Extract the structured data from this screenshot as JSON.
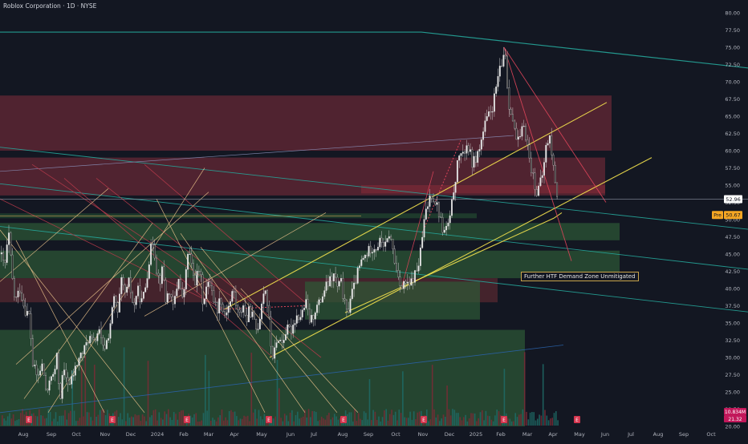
{
  "title": "Roblox Corporation · 1D · NYSE",
  "chart_data": {
    "type": "candlestick",
    "ylim": [
      20,
      80
    ],
    "y_ticks": [
      80,
      77.5,
      75,
      72.5,
      70,
      67.5,
      65,
      62.5,
      60,
      57.5,
      55,
      52.5,
      50,
      47.5,
      45,
      42.5,
      40,
      37.5,
      35,
      32.5,
      30,
      27.5,
      25,
      22.5,
      20
    ],
    "y_tick_labels": [
      "80.00",
      "77.50",
      "75.00",
      "72.50",
      "70.00",
      "67.50",
      "65.00",
      "62.50",
      "60.00",
      "57.50",
      "55.00",
      "52.50",
      "50.00",
      "47.50",
      "45.00",
      "42.50",
      "40.00",
      "37.50",
      "35.00",
      "32.50",
      "30.00",
      "27.50",
      "25.00",
      "22.50",
      "20.00"
    ],
    "x_labels": [
      "Aug",
      "Sep",
      "Oct",
      "Nov",
      "Dec",
      "2024",
      "Feb",
      "Mar",
      "Apr",
      "May",
      "Jun",
      "Jul",
      "Aug",
      "Sep",
      "Oct",
      "Nov",
      "Dec",
      "2025",
      "Feb",
      "Mar",
      "Apr",
      "May",
      "Jun",
      "Jul",
      "Aug",
      "Sep",
      "Oct"
    ],
    "last_price": "52.96",
    "pre_market_tag": "Pre",
    "pre_market_price": "50.67",
    "volume_value": "10.834M",
    "volume_value_2": "21.32",
    "annotation": "Further HTF Demand Zone Unmitigated",
    "price_path": [
      [
        0,
        45
      ],
      [
        5,
        43
      ],
      [
        10,
        48
      ],
      [
        14,
        42
      ],
      [
        18,
        38
      ],
      [
        24,
        40
      ],
      [
        30,
        37
      ],
      [
        36,
        36
      ],
      [
        40,
        29
      ],
      [
        46,
        27
      ],
      [
        52,
        29
      ],
      [
        58,
        24
      ],
      [
        62,
        28
      ],
      [
        66,
        27
      ],
      [
        70,
        30
      ],
      [
        74,
        24
      ],
      [
        78,
        28
      ],
      [
        82,
        27
      ],
      [
        86,
        26
      ],
      [
        92,
        28
      ],
      [
        98,
        30
      ],
      [
        104,
        31
      ],
      [
        110,
        33
      ],
      [
        116,
        32
      ],
      [
        122,
        34
      ],
      [
        128,
        31
      ],
      [
        134,
        33
      ],
      [
        138,
        36
      ],
      [
        142,
        39
      ],
      [
        146,
        36
      ],
      [
        150,
        41
      ],
      [
        156,
        39
      ],
      [
        160,
        41
      ],
      [
        166,
        37
      ],
      [
        170,
        40
      ],
      [
        176,
        38
      ],
      [
        180,
        40
      ],
      [
        186,
        45
      ],
      [
        190,
        47
      ],
      [
        194,
        43
      ],
      [
        198,
        41
      ],
      [
        202,
        43
      ],
      [
        206,
        38
      ],
      [
        210,
        40
      ],
      [
        214,
        37
      ],
      [
        218,
        39
      ],
      [
        222,
        42
      ],
      [
        226,
        38
      ],
      [
        230,
        41
      ],
      [
        234,
        46
      ],
      [
        238,
        43
      ],
      [
        242,
        41
      ],
      [
        248,
        43
      ],
      [
        252,
        38
      ],
      [
        256,
        40
      ],
      [
        262,
        41
      ],
      [
        266,
        38
      ],
      [
        270,
        37
      ],
      [
        274,
        39
      ],
      [
        278,
        36
      ],
      [
        282,
        37
      ],
      [
        286,
        38
      ],
      [
        290,
        40
      ],
      [
        294,
        37
      ],
      [
        298,
        36
      ],
      [
        302,
        38
      ],
      [
        306,
        35
      ],
      [
        310,
        37
      ],
      [
        314,
        36
      ],
      [
        318,
        34
      ],
      [
        322,
        35
      ],
      [
        326,
        39
      ],
      [
        330,
        40
      ],
      [
        334,
        36
      ],
      [
        338,
        30
      ],
      [
        342,
        31
      ],
      [
        346,
        33
      ],
      [
        350,
        32
      ],
      [
        356,
        34
      ],
      [
        362,
        34
      ],
      [
        368,
        36
      ],
      [
        374,
        36
      ],
      [
        380,
        38
      ],
      [
        386,
        35
      ],
      [
        392,
        37
      ],
      [
        398,
        38
      ],
      [
        404,
        40
      ],
      [
        410,
        41
      ],
      [
        416,
        42
      ],
      [
        420,
        40
      ],
      [
        424,
        41
      ],
      [
        428,
        38
      ],
      [
        432,
        36
      ],
      [
        436,
        39
      ],
      [
        440,
        40
      ],
      [
        444,
        42
      ],
      [
        450,
        44
      ],
      [
        456,
        45
      ],
      [
        462,
        46
      ],
      [
        468,
        46
      ],
      [
        474,
        47
      ],
      [
        480,
        46
      ],
      [
        484,
        48
      ],
      [
        488,
        46
      ],
      [
        492,
        43
      ],
      [
        496,
        42
      ],
      [
        500,
        40
      ],
      [
        504,
        41
      ],
      [
        508,
        40
      ],
      [
        512,
        41
      ],
      [
        516,
        42
      ],
      [
        520,
        43
      ],
      [
        524,
        46
      ],
      [
        528,
        50
      ],
      [
        532,
        52
      ],
      [
        536,
        54
      ],
      [
        540,
        53
      ],
      [
        544,
        52
      ],
      [
        548,
        50
      ],
      [
        552,
        48
      ],
      [
        556,
        49
      ],
      [
        560,
        50
      ],
      [
        564,
        54
      ],
      [
        568,
        57
      ],
      [
        572,
        60
      ],
      [
        576,
        59
      ],
      [
        580,
        61
      ],
      [
        584,
        60
      ],
      [
        588,
        58
      ],
      [
        592,
        59
      ],
      [
        596,
        60
      ],
      [
        600,
        62
      ],
      [
        604,
        64
      ],
      [
        608,
        65
      ],
      [
        612,
        66
      ],
      [
        616,
        68
      ],
      [
        620,
        71
      ],
      [
        624,
        72
      ],
      [
        628,
        75
      ],
      [
        630,
        73
      ],
      [
        632,
        67
      ],
      [
        636,
        66
      ],
      [
        640,
        63
      ],
      [
        644,
        61
      ],
      [
        648,
        62
      ],
      [
        652,
        64
      ],
      [
        656,
        61
      ],
      [
        660,
        58
      ],
      [
        664,
        56
      ],
      [
        668,
        54
      ],
      [
        672,
        55
      ],
      [
        676,
        57
      ],
      [
        680,
        61
      ],
      [
        684,
        62
      ],
      [
        688,
        58
      ],
      [
        692,
        55
      ],
      [
        695,
        52
      ]
    ],
    "zones": [
      {
        "color": "#6b2a36",
        "y0": 60,
        "y1": 68,
        "x0": 0,
        "x1": 762
      },
      {
        "color": "#6b2a36",
        "y0": 53.5,
        "y1": 59,
        "x0": 0,
        "x1": 754
      },
      {
        "color": "#7a2a36",
        "y0": 53.8,
        "y1": 55,
        "x0": 450,
        "x1": 754
      },
      {
        "color": "#244a30",
        "y0": 50.2,
        "y1": 50.9,
        "x0": 0,
        "x1": 594
      },
      {
        "color": "#2d5a36",
        "y0": 47,
        "y1": 49.5,
        "x0": 0,
        "x1": 772
      },
      {
        "color": "#2d5a36",
        "y0": 41.5,
        "y1": 45.5,
        "x0": 0,
        "x1": 772
      },
      {
        "color": "#5a2a30",
        "y0": 38,
        "y1": 41.5,
        "x0": 0,
        "x1": 620
      },
      {
        "color": "#2d5a36",
        "y0": 35.5,
        "y1": 41,
        "x0": 380,
        "x1": 598
      },
      {
        "color": "#2d5a36",
        "y0": 20,
        "y1": 34,
        "x0": 0,
        "x1": 654
      }
    ],
    "lines": [
      {
        "color": "#26a69a",
        "w": 1.2,
        "p": [
          [
            0,
            77.2
          ],
          [
            525,
            77.2
          ],
          [
            932,
            72
          ]
        ]
      },
      {
        "color": "#26a69a",
        "w": 0.9,
        "p": [
          [
            0,
            60.5
          ],
          [
            932,
            48.6
          ]
        ]
      },
      {
        "color": "#26a69a",
        "w": 0.9,
        "p": [
          [
            0,
            55.2
          ],
          [
            932,
            42.8
          ]
        ]
      },
      {
        "color": "#26a69a",
        "w": 0.9,
        "p": [
          [
            0,
            49
          ],
          [
            932,
            36.6
          ]
        ]
      },
      {
        "color": "#2a62a8",
        "w": 0.8,
        "p": [
          [
            0,
            22
          ],
          [
            702,
            31.8
          ]
        ]
      },
      {
        "color": "#8a8fb8",
        "w": 0.7,
        "p": [
          [
            0,
            57
          ],
          [
            640,
            62.2
          ]
        ]
      },
      {
        "color": "#f5e34e",
        "w": 1.1,
        "p": [
          [
            336,
            30
          ],
          [
            812,
            59
          ]
        ]
      },
      {
        "color": "#f5e34e",
        "w": 1.1,
        "p": [
          [
            280,
            37
          ],
          [
            756,
            67
          ]
        ]
      },
      {
        "color": "#f5e34e",
        "w": 1.1,
        "p": [
          [
            430,
            36.5
          ],
          [
            690,
            50.2
          ],
          [
            700,
            51
          ]
        ]
      },
      {
        "color": "#e0455a",
        "w": 0.9,
        "p": [
          [
            628,
            75
          ],
          [
            712,
            44
          ]
        ]
      },
      {
        "color": "#e0455a",
        "w": 0.9,
        "p": [
          [
            628,
            75
          ],
          [
            755,
            52.5
          ]
        ]
      },
      {
        "color": "#e0455a",
        "w": 0.8,
        "p": [
          [
            500,
            40
          ],
          [
            540,
            57
          ]
        ]
      },
      {
        "color": "#b53a4a",
        "w": 0.8,
        "p": [
          [
            0,
            53
          ],
          [
            280,
            37
          ]
        ]
      },
      {
        "color": "#b53a4a",
        "w": 0.8,
        "p": [
          [
            40,
            58
          ],
          [
            300,
            38
          ]
        ]
      },
      {
        "color": "#b53a4a",
        "w": 0.8,
        "p": [
          [
            80,
            56
          ],
          [
            340,
            30
          ]
        ]
      },
      {
        "color": "#b53a4a",
        "w": 0.8,
        "p": [
          [
            120,
            56
          ],
          [
            400,
            30
          ]
        ]
      },
      {
        "color": "#b53a4a",
        "w": 0.8,
        "p": [
          [
            180,
            58
          ],
          [
            380,
            38
          ]
        ]
      },
      {
        "color": "#e8c08a",
        "w": 0.7,
        "p": [
          [
            0,
            41
          ],
          [
            135,
            54.5
          ]
        ]
      },
      {
        "color": "#e8c08a",
        "w": 0.7,
        "p": [
          [
            20,
            29
          ],
          [
            260,
            54
          ]
        ]
      },
      {
        "color": "#e8c08a",
        "w": 0.7,
        "p": [
          [
            30,
            24
          ],
          [
            190,
            49.5
          ]
        ]
      },
      {
        "color": "#e8c08a",
        "w": 0.7,
        "p": [
          [
            60,
            22
          ],
          [
            255,
            57.5
          ]
        ]
      },
      {
        "color": "#e8c08a",
        "w": 0.7,
        "p": [
          [
            180,
            36
          ],
          [
            406,
            51
          ]
        ]
      },
      {
        "color": "#e8c08a",
        "w": 0.7,
        "p": [
          [
            0,
            48.5
          ],
          [
            180,
            22
          ]
        ]
      },
      {
        "color": "#e8c08a",
        "w": 0.7,
        "p": [
          [
            20,
            47
          ],
          [
            130,
            22
          ]
        ]
      },
      {
        "color": "#e8c08a",
        "w": 0.7,
        "p": [
          [
            195,
            53
          ],
          [
            330,
            22
          ]
        ]
      },
      {
        "color": "#e8c08a",
        "w": 0.7,
        "p": [
          [
            225,
            48
          ],
          [
            380,
            22
          ]
        ]
      },
      {
        "color": "#e8c08a",
        "w": 0.7,
        "p": [
          [
            250,
            46
          ],
          [
            420,
            22
          ]
        ]
      },
      {
        "color": "#e8c08a",
        "w": 0.7,
        "p": [
          [
            300,
            40
          ],
          [
            446,
            22
          ]
        ]
      },
      {
        "color": "#d4aa55",
        "w": 0.6,
        "p": [
          [
            0,
            50.5
          ],
          [
            450,
            50.5
          ]
        ]
      },
      {
        "color": "#9aa0b0",
        "w": 0.6,
        "p": [
          [
            0,
            52.96
          ],
          [
            932,
            52.96
          ]
        ]
      }
    ],
    "dot_arrows": [
      {
        "color": "#e0455a",
        "p": [
          [
            526,
            48
          ],
          [
            574,
            61.5
          ]
        ]
      },
      {
        "color": "#e0455a",
        "p": [
          [
            274,
            37
          ],
          [
            380,
            37.5
          ]
        ]
      }
    ]
  }
}
